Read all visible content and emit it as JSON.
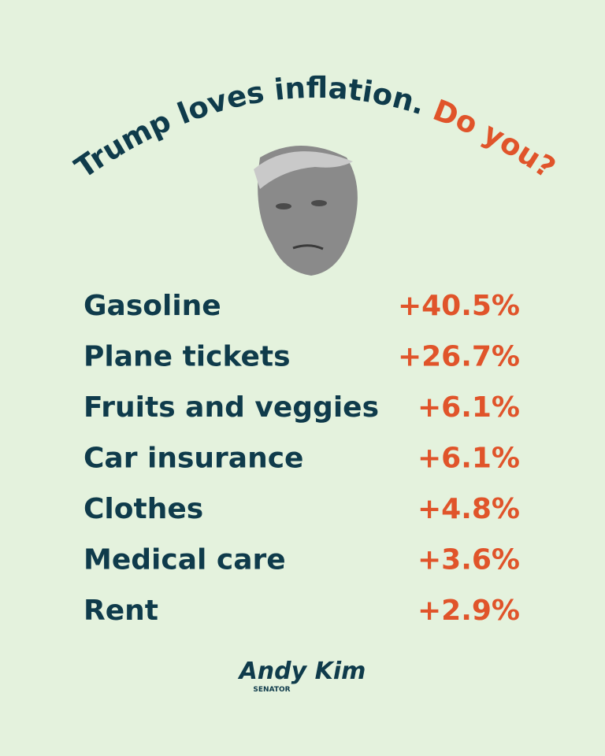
{
  "header": {
    "title_part1": "Trump loves inflation.",
    "title_part2": "Do you?"
  },
  "items": [
    {
      "label": "Gasoline",
      "change": "+40.5%"
    },
    {
      "label": "Plane tickets",
      "change": "+26.7%"
    },
    {
      "label": "Fruits and veggies",
      "change": "+6.1%"
    },
    {
      "label": "Car insurance",
      "change": "+6.1%"
    },
    {
      "label": "Clothes",
      "change": "+4.8%"
    },
    {
      "label": "Medical care",
      "change": "+3.6%"
    },
    {
      "label": "Rent",
      "change": "+2.9%"
    }
  ],
  "footer": {
    "signature": "Andy Kim",
    "role": "SENATOR"
  }
}
